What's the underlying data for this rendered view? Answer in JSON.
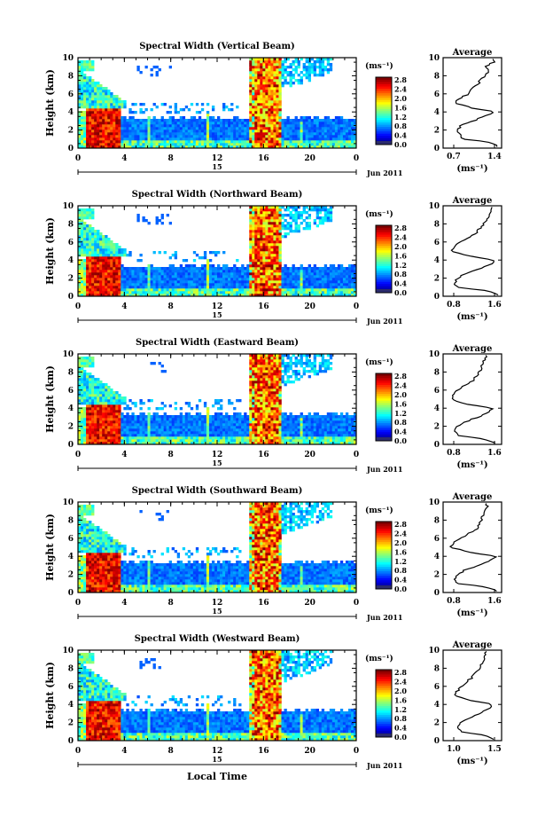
{
  "figure": {
    "xlabel": "Local Time",
    "date_label": "Jun 2011",
    "day_label": "15",
    "ylabel": "Height (km)",
    "avg_title": "Average",
    "avg_xlabel": "(ms⁻¹)",
    "colorbar_unit": "(ms⁻¹)",
    "colorbar_ticks": [
      "0.0",
      "0.4",
      "0.8",
      "1.2",
      "1.6",
      "2.0",
      "2.4",
      "2.8"
    ]
  },
  "chart_data": [
    {
      "type": "heatmap",
      "title": "Spectral Width (Vertical Beam)",
      "xticks": [
        "0",
        "4",
        "8",
        "12",
        "16",
        "20",
        "0"
      ],
      "yticks": [
        "0",
        "2",
        "4",
        "6",
        "8",
        "10"
      ],
      "xlim": [
        0,
        24
      ],
      "ylim": [
        0,
        10
      ],
      "avg_profile": {
        "xlim": [
          0.7,
          1.4
        ],
        "xticks": [
          "0.7",
          "1.4"
        ],
        "height_km": [
          0.2,
          0.6,
          1.0,
          1.5,
          2.0,
          2.5,
          3.0,
          3.5,
          4.0,
          4.4,
          5.0,
          5.5,
          6.0,
          6.5,
          7.0,
          7.5,
          8.0,
          8.5,
          9.0,
          9.5
        ],
        "width_ms": [
          1.35,
          1.3,
          0.95,
          0.9,
          0.88,
          0.92,
          1.05,
          1.2,
          1.32,
          1.05,
          0.85,
          0.9,
          1.0,
          1.05,
          1.1,
          1.15,
          1.2,
          1.25,
          1.22,
          1.3
        ]
      }
    },
    {
      "type": "heatmap",
      "title": "Spectral Width (Northward Beam)",
      "xticks": [
        "0",
        "4",
        "8",
        "12",
        "16",
        "20",
        "0"
      ],
      "yticks": [
        "0",
        "2",
        "4",
        "6",
        "8",
        "10"
      ],
      "xlim": [
        0,
        24
      ],
      "ylim": [
        0,
        10
      ],
      "avg_profile": {
        "xlim": [
          0.8,
          1.6
        ],
        "xticks": [
          "0.8",
          "1.6"
        ],
        "height_km": [
          0.2,
          0.6,
          1.0,
          1.5,
          2.0,
          2.5,
          3.0,
          3.5,
          4.0,
          4.4,
          5.0,
          5.5,
          6.0,
          6.5,
          7.0,
          7.5,
          8.0,
          8.5,
          9.0,
          9.5
        ],
        "width_ms": [
          1.55,
          1.4,
          1.0,
          0.95,
          1.0,
          1.1,
          1.3,
          1.45,
          1.5,
          1.2,
          0.9,
          0.95,
          1.05,
          1.15,
          1.25,
          1.3,
          1.35,
          1.4,
          1.42,
          1.45
        ]
      }
    },
    {
      "type": "heatmap",
      "title": "Spectral Width (Eastward Beam)",
      "xticks": [
        "0",
        "4",
        "8",
        "12",
        "16",
        "20",
        "0"
      ],
      "yticks": [
        "0",
        "2",
        "4",
        "6",
        "8",
        "10"
      ],
      "xlim": [
        0,
        24
      ],
      "ylim": [
        0,
        10
      ],
      "avg_profile": {
        "xlim": [
          0.8,
          1.6
        ],
        "xticks": [
          "0.8",
          "1.6"
        ],
        "height_km": [
          0.2,
          0.6,
          1.0,
          1.5,
          2.0,
          2.5,
          3.0,
          3.5,
          4.0,
          4.4,
          5.0,
          5.5,
          6.0,
          6.5,
          7.0,
          7.5,
          8.0,
          8.5,
          9.0,
          9.5
        ],
        "width_ms": [
          1.5,
          1.35,
          1.0,
          0.95,
          1.0,
          1.1,
          1.28,
          1.42,
          1.48,
          1.15,
          0.9,
          0.95,
          1.0,
          1.1,
          1.2,
          1.25,
          1.3,
          1.32,
          1.35,
          1.38
        ]
      }
    },
    {
      "type": "heatmap",
      "title": "Spectral Width (Southward Beam)",
      "xticks": [
        "0",
        "4",
        "8",
        "12",
        "16",
        "20",
        "0"
      ],
      "yticks": [
        "0",
        "2",
        "4",
        "6",
        "8",
        "10"
      ],
      "xlim": [
        0,
        24
      ],
      "ylim": [
        0,
        10
      ],
      "avg_profile": {
        "xlim": [
          0.8,
          1.6
        ],
        "xticks": [
          "0.8",
          "1.6"
        ],
        "height_km": [
          0.2,
          0.6,
          1.0,
          1.5,
          2.0,
          2.5,
          3.0,
          3.5,
          4.0,
          4.4,
          5.0,
          5.5,
          6.0,
          6.5,
          7.0,
          7.5,
          8.0,
          8.5,
          9.0,
          9.5
        ],
        "width_ms": [
          1.55,
          1.4,
          1.0,
          0.95,
          1.0,
          1.1,
          1.3,
          1.45,
          1.52,
          1.2,
          0.9,
          0.95,
          1.05,
          1.15,
          1.25,
          1.3,
          1.32,
          1.35,
          1.38,
          1.4
        ]
      }
    },
    {
      "type": "heatmap",
      "title": "Spectral Width (Westward Beam)",
      "xticks": [
        "0",
        "4",
        "8",
        "12",
        "16",
        "20",
        "0"
      ],
      "yticks": [
        "0",
        "2",
        "4",
        "6",
        "8",
        "10"
      ],
      "xlim": [
        0,
        24
      ],
      "ylim": [
        0,
        10
      ],
      "avg_profile": {
        "xlim": [
          0.8,
          1.6
        ],
        "xticks": [
          "1.0",
          "1.5"
        ],
        "height_km": [
          0.2,
          0.6,
          1.0,
          1.5,
          2.0,
          2.5,
          3.0,
          3.5,
          4.0,
          4.4,
          5.0,
          5.5,
          6.0,
          6.5,
          7.0,
          7.5,
          8.0,
          8.5,
          9.0,
          9.5
        ],
        "width_ms": [
          1.5,
          1.35,
          1.05,
          1.0,
          1.05,
          1.15,
          1.3,
          1.42,
          1.48,
          1.2,
          0.95,
          1.0,
          1.05,
          1.12,
          1.2,
          1.25,
          1.3,
          1.33,
          1.35,
          1.38
        ]
      }
    }
  ]
}
